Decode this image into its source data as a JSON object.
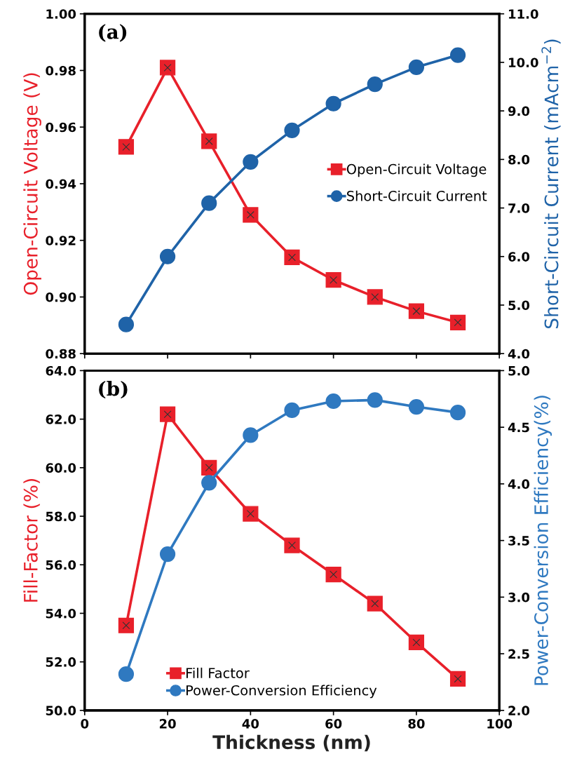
{
  "chart_data": [
    {
      "type": "line",
      "annotations": [
        "(a)"
      ],
      "ylabel": "Open-Circuit Voltage (V)",
      "y2label": "Short-Circuit Current (mAcm$^{−2}$)",
      "x": [
        10,
        20,
        30,
        40,
        50,
        60,
        70,
        80,
        90
      ],
      "xlim": [
        0,
        100
      ],
      "xticks": [
        0,
        20,
        40,
        60,
        80,
        100
      ],
      "ylim": [
        0.88,
        1.0
      ],
      "yticks": [
        {
          "value": 0.88,
          "label": "0.88"
        },
        {
          "value": 0.9,
          "label": "0.90"
        },
        {
          "value": 0.92,
          "label": "0.92"
        },
        {
          "value": 0.94,
          "label": "0.94"
        },
        {
          "value": 0.96,
          "label": "0.96"
        },
        {
          "value": 0.98,
          "label": "0.98"
        },
        {
          "value": 1.0,
          "label": "1.00"
        }
      ],
      "y2lim": [
        4.0,
        11.0
      ],
      "y2ticks": [
        {
          "value": 4,
          "label": "4.0"
        },
        {
          "value": 5,
          "label": "5.0"
        },
        {
          "value": 6,
          "label": "6.0"
        },
        {
          "value": 7,
          "label": "7.0"
        },
        {
          "value": 8,
          "label": "8.0"
        },
        {
          "value": 9,
          "label": "9.0"
        },
        {
          "value": 10,
          "label": "10.0"
        },
        {
          "value": 11,
          "label": "11.0"
        }
      ],
      "tick_labels": "y",
      "legend": "right",
      "grid": false,
      "series": [
        {
          "name": "Open-Circuit Voltage",
          "color": "#e8202a",
          "marker": "square",
          "values": [
            0.953,
            0.981,
            0.955,
            0.929,
            0.914,
            0.906,
            0.9,
            0.895,
            0.891
          ]
        },
        {
          "name": "Short-Circuit Current",
          "color": "#1f63a8",
          "marker": "circle",
          "axis": "y2",
          "values": [
            4.6,
            6.0,
            7.1,
            7.95,
            8.6,
            9.15,
            9.55,
            9.9,
            10.15
          ]
        }
      ]
    },
    {
      "type": "line",
      "annotations": [
        "(b)"
      ],
      "xlabel": "Thickness (nm)",
      "ylabel": "Fill-Factor (%)",
      "y2label": "Power-Conversion Efficiency(%)",
      "x": [
        10,
        20,
        30,
        40,
        50,
        60,
        70,
        80,
        90
      ],
      "xlim": [
        0,
        100
      ],
      "xticks": [
        0,
        20,
        40,
        60,
        80,
        100
      ],
      "ylim": [
        50.0,
        64.0
      ],
      "yticks": [
        {
          "value": 50,
          "label": "50.0"
        },
        {
          "value": 52,
          "label": "52.0"
        },
        {
          "value": 54,
          "label": "54.0"
        },
        {
          "value": 56,
          "label": "56.0"
        },
        {
          "value": 58,
          "label": "58.0"
        },
        {
          "value": 60,
          "label": "60.0"
        },
        {
          "value": 62,
          "label": "62.0"
        },
        {
          "value": 64,
          "label": "64.0"
        }
      ],
      "y2lim": [
        2.0,
        5.0
      ],
      "y2ticks": [
        {
          "value": 2,
          "label": "2.0"
        },
        {
          "value": 2.5,
          "label": "2.5"
        },
        {
          "value": 3,
          "label": "3.0"
        },
        {
          "value": 3.5,
          "label": "3.5"
        },
        {
          "value": 4,
          "label": "4.0"
        },
        {
          "value": 4.5,
          "label": "4.5"
        },
        {
          "value": 5,
          "label": "5.0"
        }
      ],
      "legend": "bottom left",
      "grid": false,
      "series": [
        {
          "name": "Fill Factor",
          "color": "#e8202a",
          "marker": "square",
          "values": [
            53.5,
            62.2,
            60.0,
            58.1,
            56.8,
            55.6,
            54.4,
            52.8,
            51.3
          ]
        },
        {
          "name": "Power-Conversion Efficiency",
          "color": "#2f79c0",
          "marker": "circle",
          "axis": "y2",
          "values": [
            2.32,
            3.38,
            4.01,
            4.43,
            4.65,
            4.73,
            4.74,
            4.68,
            4.63
          ]
        }
      ]
    }
  ]
}
